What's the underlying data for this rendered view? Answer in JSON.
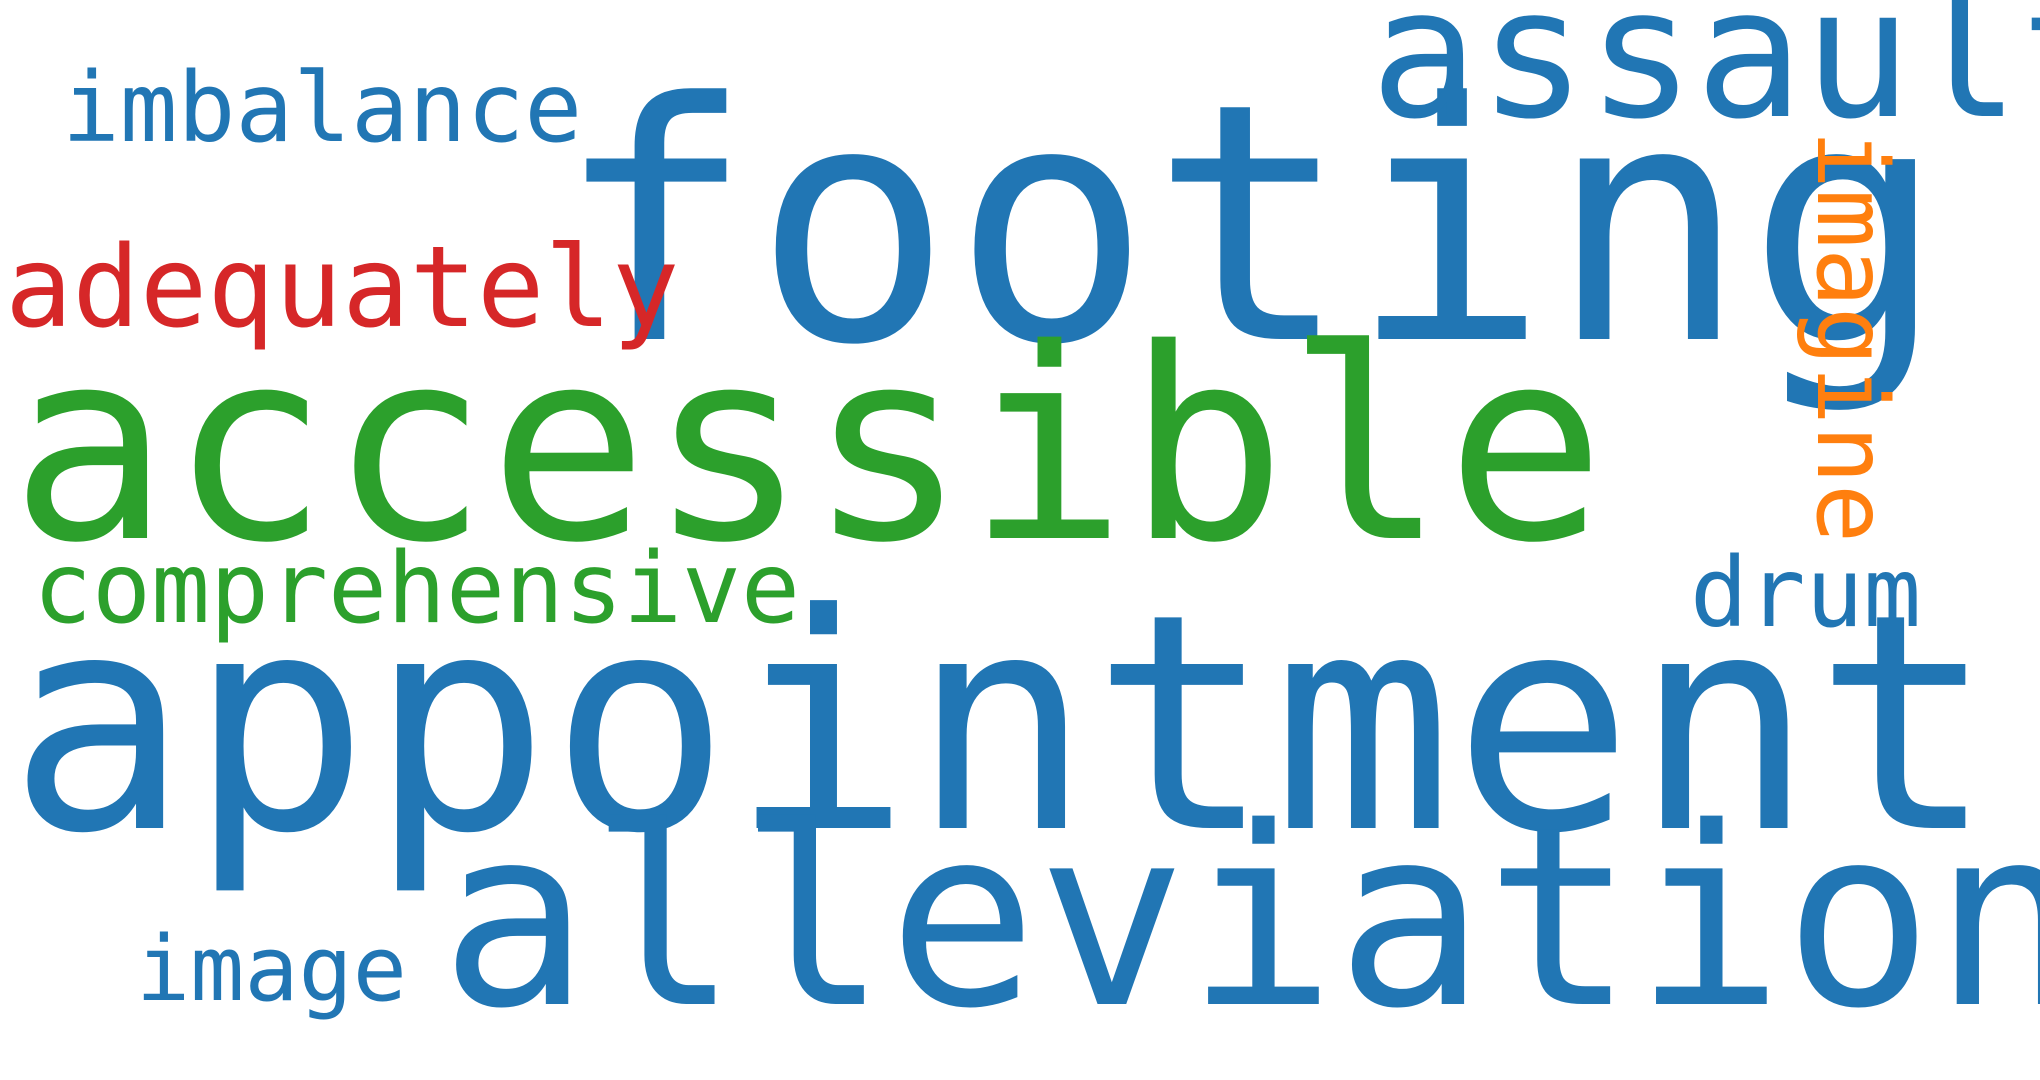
{
  "colors": {
    "blue": "#2176b4",
    "green": "#2ca02c",
    "red": "#d62728",
    "orange": "#ff7f0e",
    "background": "#ffffff"
  },
  "words": [
    {
      "key": "footing",
      "text": "footing",
      "color": "#2176b4"
    },
    {
      "key": "assault",
      "text": "assault",
      "color": "#2176b4"
    },
    {
      "key": "imbalance",
      "text": "imbalance",
      "color": "#2176b4"
    },
    {
      "key": "adequately",
      "text": "adequately",
      "color": "#d62728"
    },
    {
      "key": "accessible",
      "text": "accessible",
      "color": "#2ca02c"
    },
    {
      "key": "imagine",
      "text": "imagine",
      "color": "#ff7f0e"
    },
    {
      "key": "comprehensive",
      "text": "comprehensive",
      "color": "#2ca02c"
    },
    {
      "key": "drum",
      "text": "drum",
      "color": "#2176b4"
    },
    {
      "key": "appointment",
      "text": "appointment",
      "color": "#2176b4"
    },
    {
      "key": "alleviation",
      "text": "alleviation",
      "color": "#2176b4"
    },
    {
      "key": "image",
      "text": "image",
      "color": "#2176b4"
    }
  ]
}
